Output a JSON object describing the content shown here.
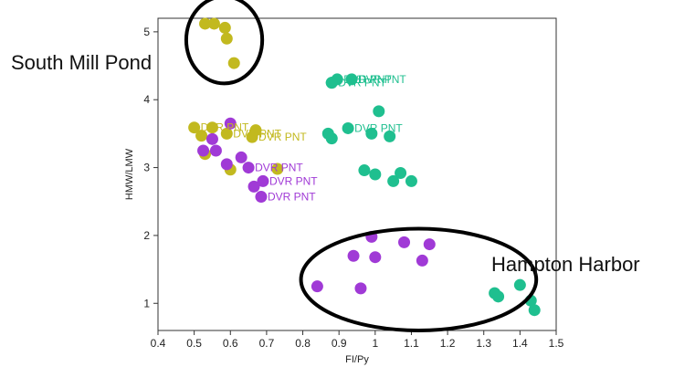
{
  "chart_data": {
    "type": "scatter",
    "xlabel": "FI/Py",
    "ylabel": "HMW/LMW",
    "xlim": [
      0.4,
      1.5
    ],
    "ylim": [
      0.6,
      5.2
    ],
    "xticks": [
      0.4,
      0.5,
      0.6,
      0.7,
      0.8,
      0.9,
      1,
      1.1,
      1.2,
      1.3,
      1.4,
      1.5
    ],
    "xtick_labels": [
      "0.4",
      "0.5",
      "0.6",
      "0.7",
      "0.8",
      "0.9",
      "1",
      "1.1",
      "1.2",
      "1.3",
      "1.4",
      "1.5"
    ],
    "yticks": [
      1,
      2,
      3,
      4,
      5
    ],
    "ytick_labels": [
      "1",
      "2",
      "3",
      "4",
      "5"
    ],
    "grid": false,
    "series": [
      {
        "color": "#c2b91f",
        "points": [
          {
            "x": 0.53,
            "y": 5.12
          },
          {
            "x": 0.555,
            "y": 5.12
          },
          {
            "x": 0.585,
            "y": 5.06
          },
          {
            "x": 0.59,
            "y": 4.9
          },
          {
            "x": 0.61,
            "y": 4.54
          },
          {
            "x": 0.5,
            "y": 3.59,
            "label": "DVR PNT"
          },
          {
            "x": 0.52,
            "y": 3.47
          },
          {
            "x": 0.55,
            "y": 3.59
          },
          {
            "x": 0.59,
            "y": 3.5,
            "label": "DVR PNT"
          },
          {
            "x": 0.53,
            "y": 3.2
          },
          {
            "x": 0.6,
            "y": 2.97
          },
          {
            "x": 0.66,
            "y": 3.45,
            "label": "DVR PNT"
          },
          {
            "x": 0.67,
            "y": 3.55
          },
          {
            "x": 0.73,
            "y": 2.98
          }
        ]
      },
      {
        "color": "#a03ad6",
        "points": [
          {
            "x": 0.6,
            "y": 3.65
          },
          {
            "x": 0.525,
            "y": 3.25
          },
          {
            "x": 0.56,
            "y": 3.25
          },
          {
            "x": 0.55,
            "y": 3.42
          },
          {
            "x": 0.63,
            "y": 3.15
          },
          {
            "x": 0.59,
            "y": 3.05
          },
          {
            "x": 0.65,
            "y": 3.0,
            "label": "DVR PNT"
          },
          {
            "x": 0.665,
            "y": 2.72
          },
          {
            "x": 0.69,
            "y": 2.8,
            "label": "DVR PNT"
          },
          {
            "x": 0.685,
            "y": 2.57,
            "label": "DVR PNT"
          },
          {
            "x": 0.84,
            "y": 1.25
          },
          {
            "x": 0.94,
            "y": 1.7
          },
          {
            "x": 0.96,
            "y": 1.22
          },
          {
            "x": 0.99,
            "y": 1.98
          },
          {
            "x": 1.0,
            "y": 1.68
          },
          {
            "x": 1.08,
            "y": 1.9
          },
          {
            "x": 1.13,
            "y": 1.63
          },
          {
            "x": 1.15,
            "y": 1.87
          }
        ]
      },
      {
        "color": "#1fbf8f",
        "points": [
          {
            "x": 0.88,
            "y": 4.25
          },
          {
            "x": 0.895,
            "y": 4.3,
            "label": "DVR PNT"
          },
          {
            "x": 0.935,
            "y": 4.3,
            "label": "DVR PNT"
          },
          {
            "x": 0.88,
            "y": 4.25,
            "label": "DVR PNT"
          },
          {
            "x": 1.01,
            "y": 3.83
          },
          {
            "x": 0.925,
            "y": 3.58,
            "label": "DVR PNT"
          },
          {
            "x": 0.87,
            "y": 3.5
          },
          {
            "x": 0.88,
            "y": 3.43
          },
          {
            "x": 0.99,
            "y": 3.5
          },
          {
            "x": 1.04,
            "y": 3.46
          },
          {
            "x": 0.97,
            "y": 2.96
          },
          {
            "x": 1.0,
            "y": 2.9
          },
          {
            "x": 1.07,
            "y": 2.92
          },
          {
            "x": 1.05,
            "y": 2.8
          },
          {
            "x": 1.1,
            "y": 2.8
          },
          {
            "x": 1.33,
            "y": 1.15
          },
          {
            "x": 1.34,
            "y": 1.1
          },
          {
            "x": 1.4,
            "y": 1.27
          },
          {
            "x": 1.43,
            "y": 1.04
          },
          {
            "x": 1.44,
            "y": 0.9
          }
        ]
      }
    ],
    "annotations": [
      {
        "text": "South Mill Pond",
        "cx": 0.583,
        "cy": 4.88,
        "rx_data": 0.105,
        "ry_data": 0.64
      },
      {
        "text": "Hampton Harbor",
        "cx": 1.12,
        "cy": 1.35,
        "rx_data": 0.325,
        "ry_data": 0.75
      }
    ]
  }
}
